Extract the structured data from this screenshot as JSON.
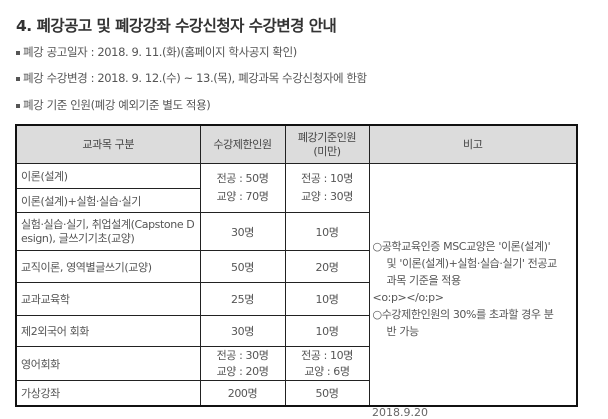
{
  "title": "4. 폐강공고 및 폐강강좌 수강신청자 수강변경 안내",
  "lines": [
    "폐강 공고일자 : 2018. 9. 11.(화)(홈페이지 학사공지 확인)",
    "폐강 수강변경 : 2018. 9. 12.(수) ~ 13.(목), 폐강과목 수강신청자에 한함",
    "폐강 기준 인원(폐강 예외기준 별도 적용)"
  ],
  "table": {
    "headers": [
      "교과목 구분",
      "수강제한인원",
      "폐강기준인원",
      "(미만)",
      "비고"
    ],
    "rows": [
      {
        "category": "이론(설계)",
        "limit1": "전공 : 50명",
        "limit2": "교양 : 70명",
        "min1": "전공 : 10명",
        "min2": "교양 : 30명"
      },
      {
        "category": "이론(설계)+실험·실습·실기"
      },
      {
        "category": "실험·실습·실기, 취업설계(Capstone Design), 글쓰기기초(교양)",
        "limit1": "30명",
        "min1": "10명"
      },
      {
        "category": "교직이론, 영역별글쓰기(교양)",
        "limit1": "50명",
        "min1": "20명"
      },
      {
        "category": "교과교육학",
        "limit1": "25명",
        "min1": "10명"
      },
      {
        "category": "제2외국어 회화",
        "limit1": "30명",
        "min1": "10명"
      },
      {
        "category": "영어회화",
        "limit1": "전공 : 30명",
        "limit2": "교양 : 20명",
        "min1": "전공 : 10명",
        "min2": "교양 : 6명"
      },
      {
        "category": "가상강좌",
        "limit1": "200명",
        "min1": "50명"
      }
    ],
    "note": {
      "p1a": "○공학교육인증 MSC교양은 '이론(설계)'",
      "p1b": "및 '이론(설계)+실험·실습·실기' 전공교",
      "p1c": "과목 기준을 적용",
      "p2": "<o:p></o:p>",
      "p3a": "○수강제한인원의 30%를 초과할 경우 분",
      "p3b": "반 가능"
    }
  },
  "footer_partial": "2018.9.20"
}
